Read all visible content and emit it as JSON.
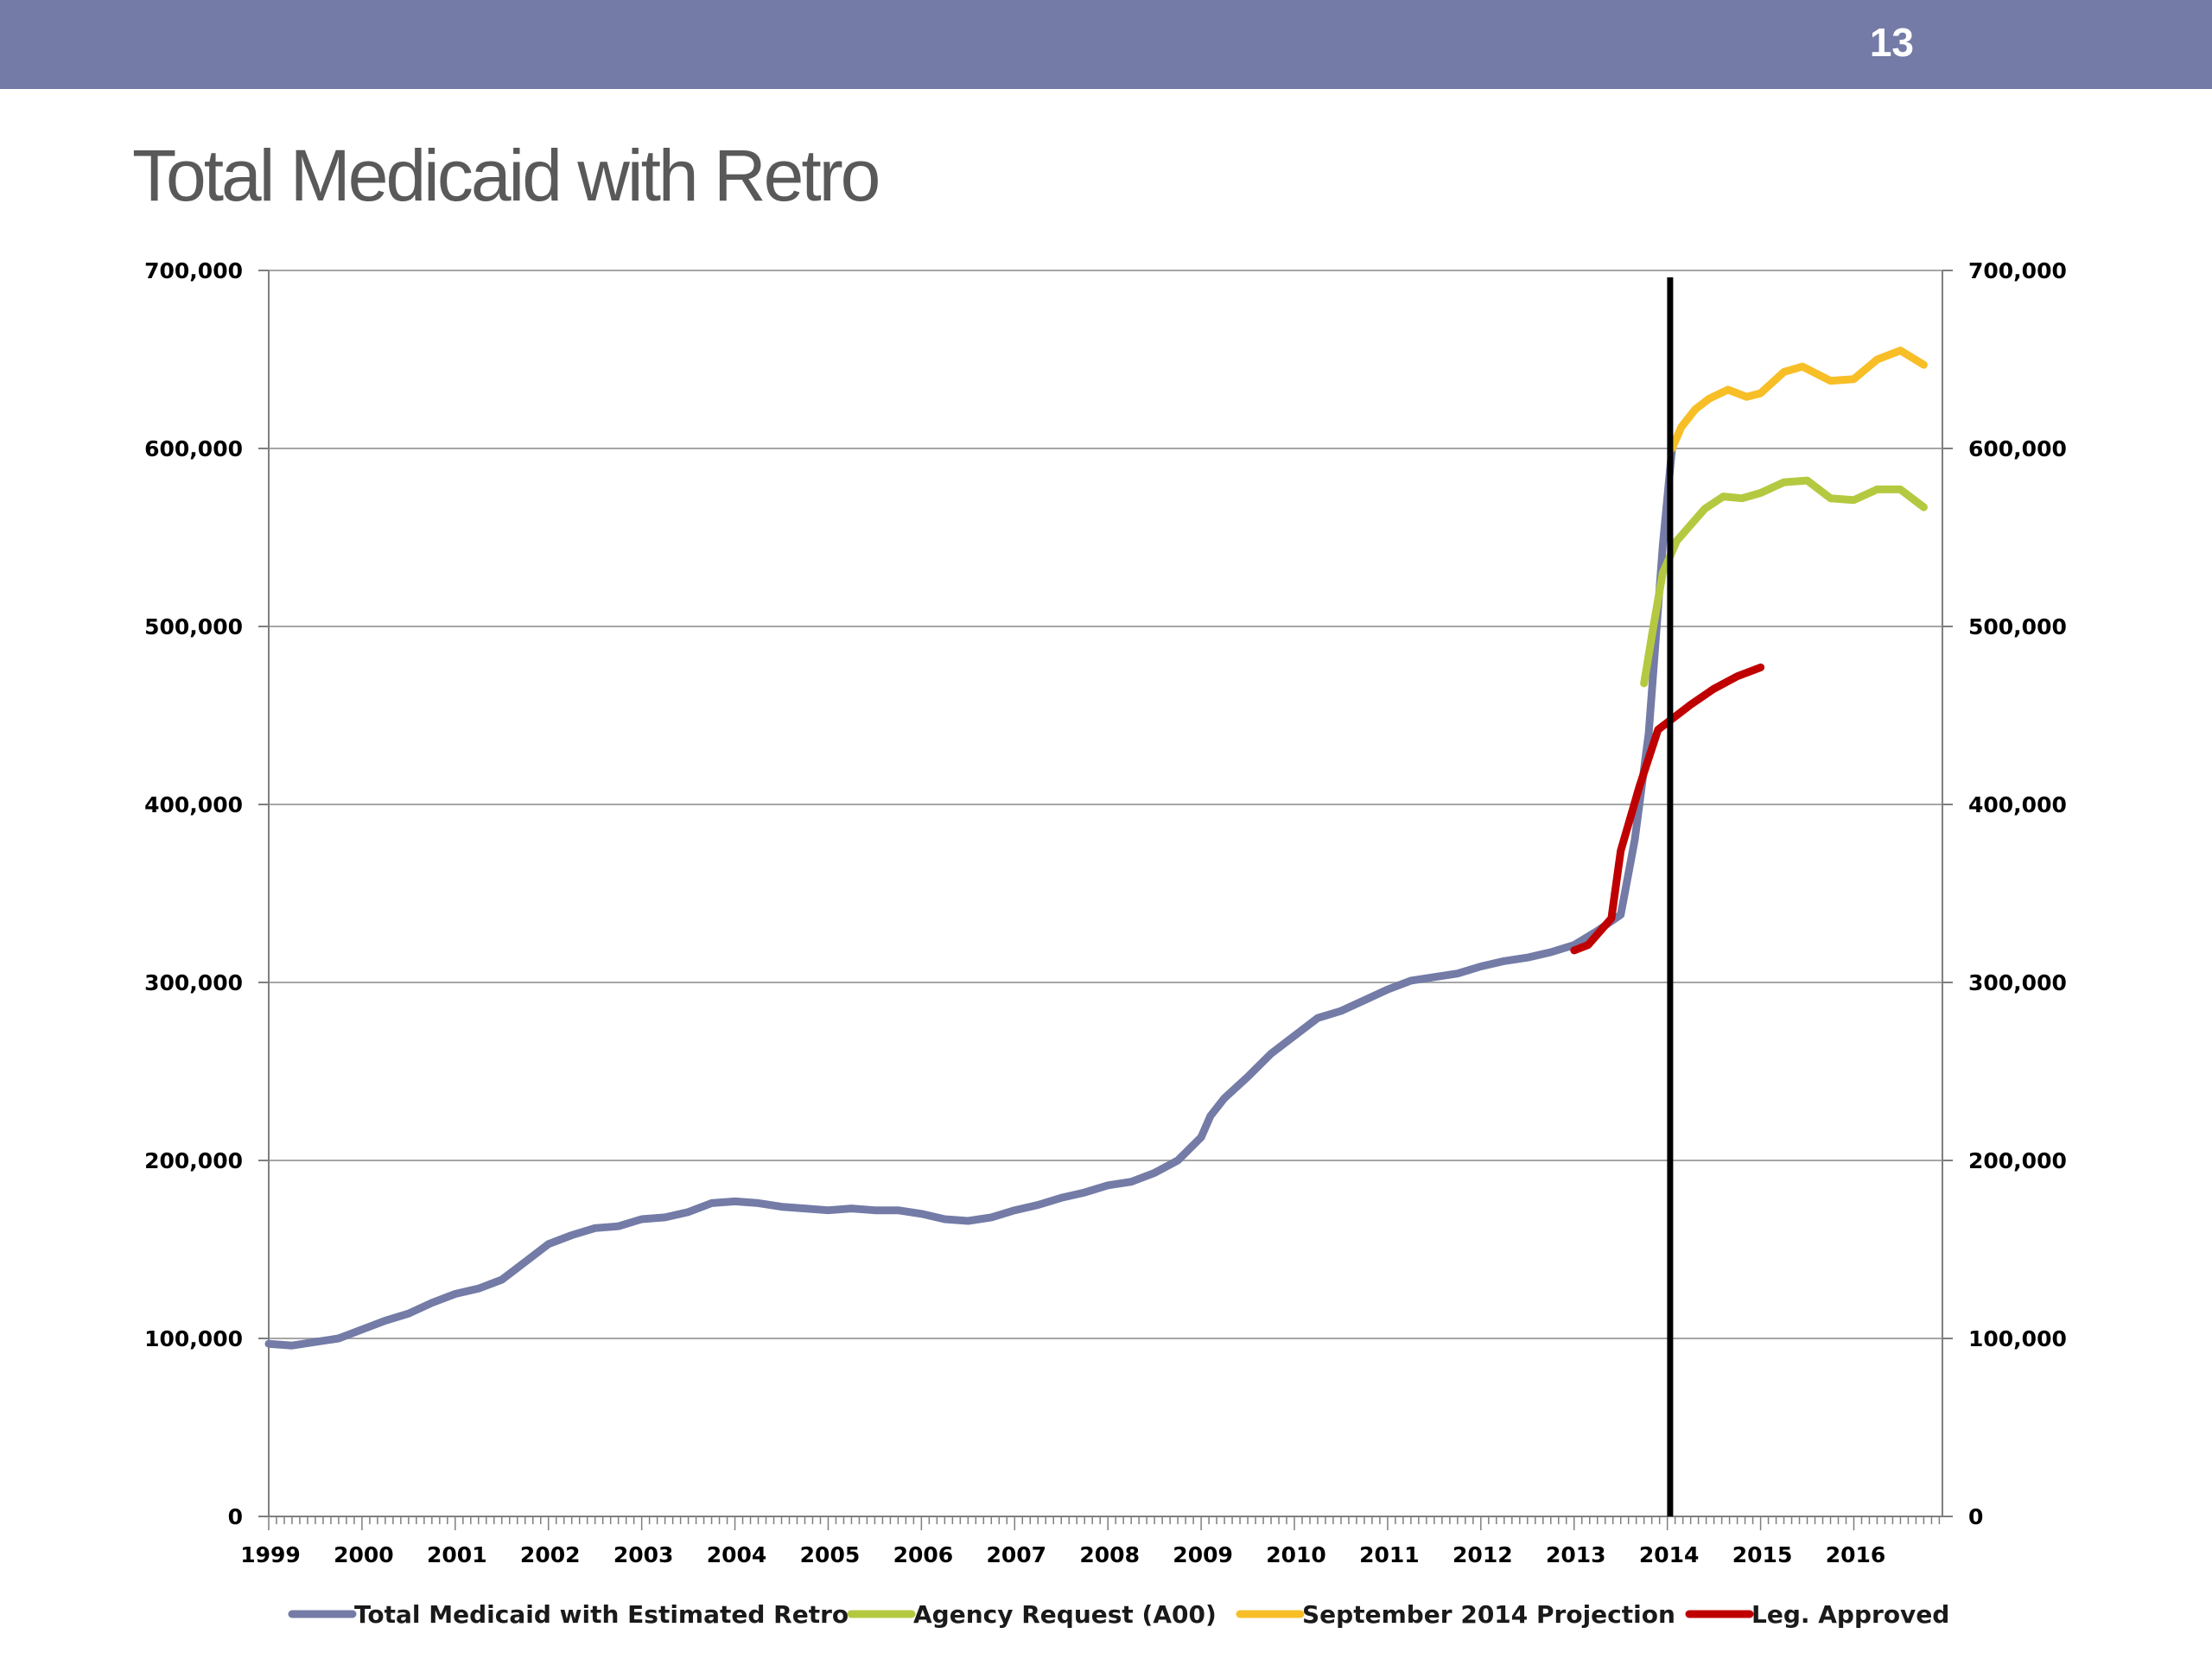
{
  "slide": {
    "number": "13",
    "title": "Total Medicaid with Retro",
    "accent_color": "#737ba6"
  },
  "chart_data": {
    "type": "line",
    "title": "Total Medicaid with Retro",
    "xlabel": "",
    "ylabel": "",
    "ylim": [
      0,
      700000
    ],
    "y_ticks": [
      0,
      100000,
      200000,
      300000,
      400000,
      500000,
      600000,
      700000
    ],
    "y_tick_labels": [
      "0",
      "100,000",
      "200,000",
      "300,000",
      "400,000",
      "500,000",
      "600,000",
      "700,000"
    ],
    "secondary_y_axis": true,
    "x_categories": [
      "1999",
      "2000",
      "2001",
      "2002",
      "2003",
      "2004",
      "2005",
      "2006",
      "2007",
      "2008",
      "2009",
      "2010",
      "2011",
      "2012",
      "2013",
      "2014",
      "2015",
      "2016"
    ],
    "grid": "horizontal",
    "legend_position": "bottom",
    "vertical_marker": {
      "x": 2014.03,
      "color": "#000000"
    },
    "series": [
      {
        "name": "Total Medicaid with Estimated Retro",
        "color": "#737ba6",
        "points": [
          [
            1999.0,
            97000
          ],
          [
            1999.25,
            96000
          ],
          [
            1999.5,
            98000
          ],
          [
            1999.75,
            100000
          ],
          [
            2000.0,
            105000
          ],
          [
            2000.25,
            110000
          ],
          [
            2000.5,
            114000
          ],
          [
            2000.75,
            120000
          ],
          [
            2001.0,
            125000
          ],
          [
            2001.25,
            128000
          ],
          [
            2001.5,
            133000
          ],
          [
            2001.75,
            143000
          ],
          [
            2002.0,
            153000
          ],
          [
            2002.25,
            158000
          ],
          [
            2002.5,
            162000
          ],
          [
            2002.75,
            163000
          ],
          [
            2003.0,
            167000
          ],
          [
            2003.25,
            168000
          ],
          [
            2003.5,
            171000
          ],
          [
            2003.75,
            176000
          ],
          [
            2004.0,
            177000
          ],
          [
            2004.25,
            176000
          ],
          [
            2004.5,
            174000
          ],
          [
            2004.75,
            173000
          ],
          [
            2005.0,
            172000
          ],
          [
            2005.25,
            173000
          ],
          [
            2005.5,
            172000
          ],
          [
            2005.75,
            172000
          ],
          [
            2006.0,
            170000
          ],
          [
            2006.25,
            167000
          ],
          [
            2006.5,
            166000
          ],
          [
            2006.75,
            168000
          ],
          [
            2007.0,
            172000
          ],
          [
            2007.25,
            175000
          ],
          [
            2007.5,
            179000
          ],
          [
            2007.75,
            182000
          ],
          [
            2008.0,
            186000
          ],
          [
            2008.25,
            188000
          ],
          [
            2008.5,
            193000
          ],
          [
            2008.75,
            200000
          ],
          [
            2009.0,
            213000
          ],
          [
            2009.1,
            225000
          ],
          [
            2009.25,
            235000
          ],
          [
            2009.5,
            247000
          ],
          [
            2009.75,
            260000
          ],
          [
            2010.0,
            270000
          ],
          [
            2010.25,
            280000
          ],
          [
            2010.5,
            284000
          ],
          [
            2010.75,
            290000
          ],
          [
            2011.0,
            296000
          ],
          [
            2011.25,
            301000
          ],
          [
            2011.5,
            303000
          ],
          [
            2011.75,
            305000
          ],
          [
            2012.0,
            309000
          ],
          [
            2012.25,
            312000
          ],
          [
            2012.5,
            314000
          ],
          [
            2012.75,
            317000
          ],
          [
            2013.0,
            321000
          ],
          [
            2013.25,
            329000
          ],
          [
            2013.5,
            338000
          ],
          [
            2013.65,
            380000
          ],
          [
            2013.8,
            440000
          ],
          [
            2013.95,
            545000
          ],
          [
            2014.05,
            600000
          ]
        ]
      },
      {
        "name": "Agency Request (A00)",
        "color": "#b5c940",
        "points": [
          [
            2013.75,
            468000
          ],
          [
            2013.85,
            500000
          ],
          [
            2013.95,
            530000
          ],
          [
            2014.1,
            548000
          ],
          [
            2014.25,
            557000
          ],
          [
            2014.4,
            566000
          ],
          [
            2014.6,
            573000
          ],
          [
            2014.8,
            572000
          ],
          [
            2015.0,
            575000
          ],
          [
            2015.25,
            581000
          ],
          [
            2015.5,
            582000
          ],
          [
            2015.75,
            572000
          ],
          [
            2016.0,
            571000
          ],
          [
            2016.25,
            577000
          ],
          [
            2016.5,
            577000
          ],
          [
            2016.75,
            567000
          ]
        ]
      },
      {
        "name": "September 2014 Projection",
        "color": "#f7be26",
        "points": [
          [
            2014.05,
            600000
          ],
          [
            2014.15,
            612000
          ],
          [
            2014.3,
            622000
          ],
          [
            2014.45,
            628000
          ],
          [
            2014.65,
            633000
          ],
          [
            2014.85,
            629000
          ],
          [
            2015.0,
            631000
          ],
          [
            2015.25,
            643000
          ],
          [
            2015.45,
            646000
          ],
          [
            2015.75,
            638000
          ],
          [
            2016.0,
            639000
          ],
          [
            2016.25,
            650000
          ],
          [
            2016.5,
            655000
          ],
          [
            2016.75,
            647000
          ]
        ]
      },
      {
        "name": "Leg. Approved",
        "color": "#c00000",
        "points": [
          [
            2013.0,
            318000
          ],
          [
            2013.15,
            321000
          ],
          [
            2013.4,
            336000
          ],
          [
            2013.5,
            374000
          ],
          [
            2013.7,
            410000
          ],
          [
            2013.9,
            442000
          ],
          [
            2014.05,
            448000
          ],
          [
            2014.25,
            456000
          ],
          [
            2014.5,
            465000
          ],
          [
            2014.75,
            472000
          ],
          [
            2015.0,
            477000
          ]
        ]
      }
    ]
  }
}
